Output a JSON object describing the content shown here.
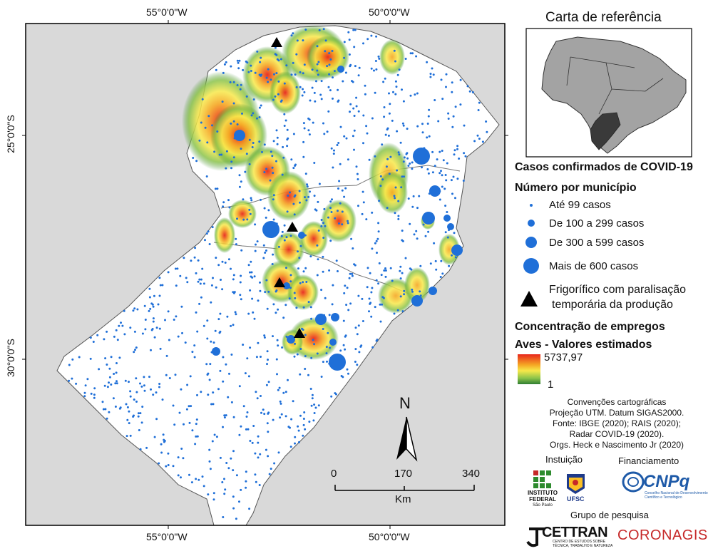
{
  "map": {
    "longitude_labels": [
      "55°0'0\"W",
      "50°0'0\"W"
    ],
    "latitude_labels": [
      "25°0'0\"S",
      "30°0'0\"S"
    ]
  },
  "reference_map": {
    "title": "Carta de referência"
  },
  "legend": {
    "title": "Casos confirmados de COVID-19",
    "subtitle": "Número por município",
    "cases": [
      {
        "label": "Até 99 casos"
      },
      {
        "label": "De 100 a 299 casos"
      },
      {
        "label": "De 300 a 599 casos"
      },
      {
        "label": "Mais de 600 casos"
      }
    ],
    "plant_line1": "Frigorífico com paralisação",
    "plant_line2": "temporária da produção",
    "employment_title": "Concentração de empregos",
    "employment_subtitle": "Aves - Valores estimados",
    "gradient_max": "5737,97",
    "gradient_min": "1",
    "gradient_colors": [
      "#e8271c",
      "#f5a623",
      "#f7e84a",
      "#8bc34a",
      "#2e7d32"
    ]
  },
  "scale": {
    "ticks": [
      "0",
      "170",
      "340"
    ],
    "unit": "Km"
  },
  "north": {
    "label": "N"
  },
  "credits": {
    "lines": [
      "Convenções cartográficas",
      "Projeção UTM. Datum SIGAS2000.",
      "Fonte: IBGE (2020); RAIS (2020);",
      "Radar COVID-19 (2020).",
      "Orgs. Heck e Nascimento Jr (2020)"
    ],
    "institution_label": "Instuição",
    "funding_label": "Financiamento",
    "research_group_label": "Grupo de pesquisa",
    "if_logo": [
      "INSTITUTO",
      "FEDERAL",
      "São Paulo"
    ],
    "ufsc_logo": "UFSC",
    "cnpq_logo": "CNPq",
    "cnpq_sub": [
      "Conselho Nacional de Desenvolvimento",
      "Científico e Tecnológico"
    ],
    "cettran_logo": "CETTRAN",
    "cettran_sub": [
      "CENTRO DE ESTUDOS SOBRE",
      "TÉCNICA, TRABALHO E NATUREZA"
    ],
    "coronagis_logo": "CORONAGIS"
  }
}
